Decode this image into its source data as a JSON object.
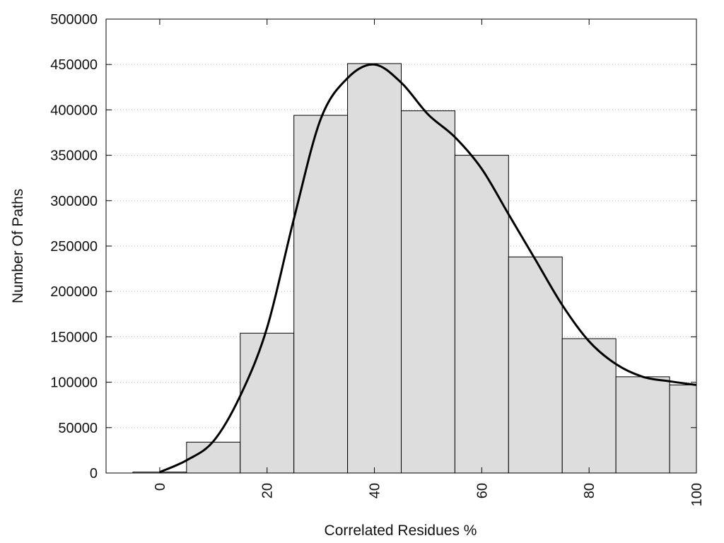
{
  "chart_data": {
    "type": "bar",
    "title": "",
    "xlabel": "Correlated Residues %",
    "ylabel": "Number Of Paths",
    "xlim": [
      -10,
      100
    ],
    "ylim": [
      0,
      500000
    ],
    "xticks": [
      0,
      20,
      40,
      60,
      80,
      100
    ],
    "yticks": [
      0,
      50000,
      100000,
      150000,
      200000,
      250000,
      300000,
      350000,
      400000,
      450000,
      500000
    ],
    "grid": "horizontal dotted",
    "bin_width": 10,
    "bins": [
      {
        "center": 0,
        "value": 1000
      },
      {
        "center": 10,
        "value": 34000
      },
      {
        "center": 20,
        "value": 154000
      },
      {
        "center": 30,
        "value": 394000
      },
      {
        "center": 40,
        "value": 451000
      },
      {
        "center": 50,
        "value": 399000
      },
      {
        "center": 60,
        "value": 350000
      },
      {
        "center": 70,
        "value": 238000
      },
      {
        "center": 80,
        "value": 148000
      },
      {
        "center": 90,
        "value": 106000
      },
      {
        "center": 100,
        "value": 97000
      }
    ],
    "curve": {
      "x": [
        0,
        5,
        10,
        15,
        20,
        25,
        30,
        35,
        40,
        45,
        50,
        55,
        60,
        65,
        70,
        75,
        80,
        85,
        90,
        95,
        100
      ],
      "y": [
        1000,
        14000,
        35000,
        85000,
        160000,
        280000,
        390000,
        435000,
        450000,
        430000,
        395000,
        370000,
        335000,
        285000,
        235000,
        185000,
        145000,
        120000,
        106000,
        101000,
        97000
      ]
    },
    "bar_color": "#dddddd",
    "bar_edge_color": "#000000",
    "curve_color": "#000000"
  }
}
